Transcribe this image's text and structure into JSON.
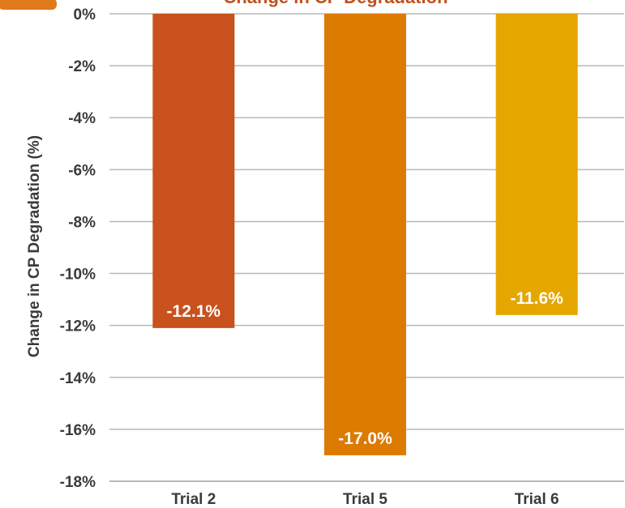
{
  "chart_data": {
    "type": "bar",
    "title": "Change in CP Degradation",
    "ylabel": "Change in CP Degradation (%)",
    "xlabel": "",
    "categories": [
      "Trial 2",
      "Trial 5",
      "Trial 6"
    ],
    "values": [
      -12.1,
      -17.0,
      -11.6
    ],
    "data_labels": [
      "-12.1%",
      "-17.0%",
      "-11.6%"
    ],
    "colors": [
      "#c9511e",
      "#dd7a00",
      "#e5a600"
    ],
    "ylim": [
      -18,
      0
    ],
    "yticks": [
      0,
      -2,
      -4,
      -6,
      -8,
      -10,
      -12,
      -14,
      -16,
      -18
    ],
    "ytick_labels": [
      "0%",
      "-2%",
      "-4%",
      "-6%",
      "-8%",
      "-10%",
      "-12%",
      "-14%",
      "-16%",
      "-18%"
    ],
    "grid": true,
    "legend": "none"
  }
}
